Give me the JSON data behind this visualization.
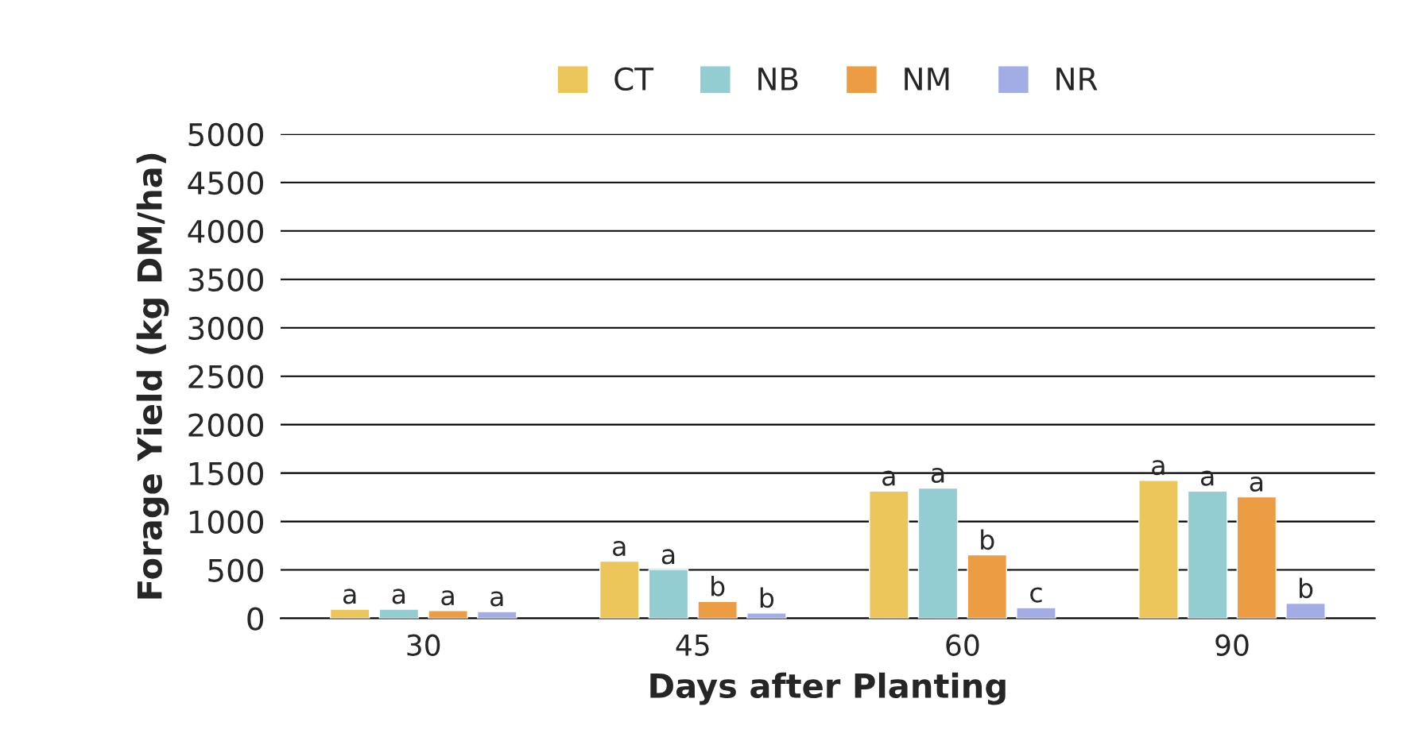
{
  "chart_data": {
    "type": "bar",
    "xlabel": "Days after Planting",
    "ylabel": "Forage Yield (kg DM/ha)",
    "categories": [
      "30",
      "45",
      "60",
      "90"
    ],
    "series": [
      {
        "name": "CT",
        "color": "#ecc55b",
        "values": [
          95,
          590,
          1315,
          1425
        ],
        "value_labels": [
          "a",
          "a",
          "a",
          "a"
        ]
      },
      {
        "name": "NB",
        "color": "#94cdd1",
        "values": [
          95,
          505,
          1345,
          1315
        ],
        "value_labels": [
          "a",
          "a",
          "a",
          "a"
        ]
      },
      {
        "name": "NM",
        "color": "#ec9d43",
        "values": [
          80,
          175,
          655,
          1255
        ],
        "value_labels": [
          "a",
          "b",
          "b",
          "a"
        ]
      },
      {
        "name": "NR",
        "color": "#a2ade6",
        "values": [
          70,
          55,
          110,
          155
        ],
        "value_labels": [
          "a",
          "b",
          "c",
          "b"
        ]
      }
    ],
    "ylim": [
      0,
      5000
    ],
    "yticks": [
      0,
      500,
      1000,
      1500,
      2000,
      2500,
      3000,
      3500,
      4000,
      4500,
      5000
    ],
    "grid": "y",
    "legend": "top"
  }
}
